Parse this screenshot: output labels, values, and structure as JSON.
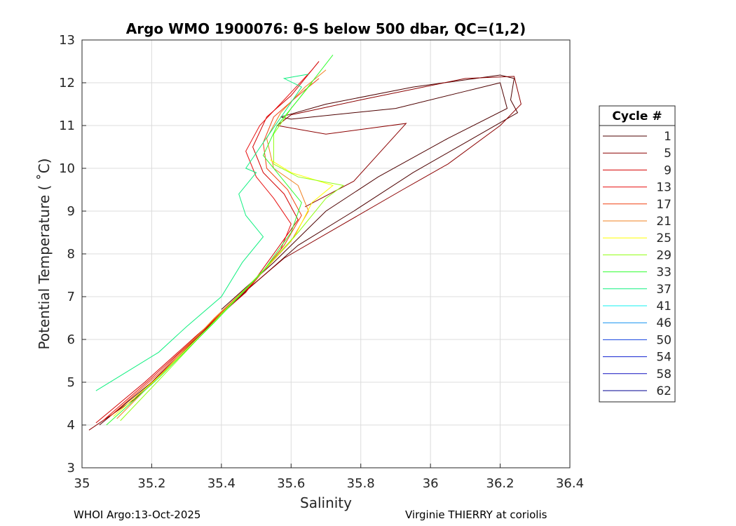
{
  "chart_data": {
    "type": "line",
    "title": "Argo WMO 1900076: θ-S below 500 dbar,  QC=(1,2)",
    "xlabel": "Salinity",
    "ylabel": "Potential Temperature ( ˚C)",
    "xlim": [
      35,
      36.4
    ],
    "ylim": [
      3,
      13
    ],
    "xticks": [
      "35",
      "35.2",
      "35.4",
      "35.6",
      "35.8",
      "36",
      "36.2",
      "36.4"
    ],
    "yticks": [
      "3",
      "4",
      "5",
      "6",
      "7",
      "8",
      "9",
      "10",
      "11",
      "12",
      "13"
    ],
    "grid": true,
    "legend_title": "Cycle #",
    "legend_position": "right",
    "series": [
      {
        "name": "1",
        "color": "#4d0000",
        "points": [
          [
            35.05,
            4.0
          ],
          [
            35.2,
            5.0
          ],
          [
            35.35,
            6.2
          ],
          [
            35.48,
            7.2
          ],
          [
            35.62,
            8.2
          ],
          [
            35.78,
            9.0
          ],
          [
            35.95,
            9.9
          ],
          [
            36.1,
            10.6
          ],
          [
            36.25,
            11.3
          ],
          [
            36.23,
            11.6
          ],
          [
            36.24,
            12.1
          ],
          [
            36.2,
            12.18
          ],
          [
            35.95,
            11.9
          ],
          [
            35.7,
            11.5
          ],
          [
            35.57,
            11.2
          ],
          [
            35.6,
            11.15
          ],
          [
            35.9,
            11.4
          ],
          [
            36.1,
            11.8
          ],
          [
            36.2,
            12.0
          ],
          [
            36.22,
            11.4
          ],
          [
            36.05,
            10.7
          ],
          [
            35.85,
            9.8
          ],
          [
            35.7,
            9.0
          ],
          [
            35.55,
            7.8
          ],
          [
            35.4,
            6.7
          ]
        ]
      },
      {
        "name": "5",
        "color": "#8b0000",
        "points": [
          [
            35.02,
            3.88
          ],
          [
            35.15,
            4.6
          ],
          [
            35.3,
            5.8
          ],
          [
            35.45,
            7.0
          ],
          [
            35.58,
            7.9
          ],
          [
            35.75,
            8.7
          ],
          [
            35.92,
            9.5
          ],
          [
            36.05,
            10.1
          ],
          [
            36.2,
            11.0
          ],
          [
            36.26,
            11.5
          ],
          [
            36.24,
            12.15
          ],
          [
            36.1,
            12.1
          ],
          [
            35.8,
            11.6
          ],
          [
            35.6,
            11.25
          ],
          [
            35.56,
            11.0
          ],
          [
            35.7,
            10.8
          ],
          [
            35.93,
            11.05
          ],
          [
            35.88,
            10.6
          ],
          [
            35.78,
            9.7
          ],
          [
            35.64,
            9.1
          ]
        ]
      },
      {
        "name": "9",
        "color": "#d40000",
        "points": [
          [
            35.04,
            4.05
          ],
          [
            35.18,
            5.0
          ],
          [
            35.33,
            6.1
          ],
          [
            35.47,
            7.1
          ],
          [
            35.55,
            8.0
          ],
          [
            35.62,
            8.8
          ],
          [
            35.58,
            9.4
          ],
          [
            35.52,
            9.9
          ],
          [
            35.49,
            10.5
          ],
          [
            35.53,
            11.2
          ],
          [
            35.6,
            11.7
          ],
          [
            35.68,
            12.5
          ]
        ]
      },
      {
        "name": "13",
        "color": "#e81010",
        "points": [
          [
            35.06,
            4.1
          ],
          [
            35.2,
            5.1
          ],
          [
            35.36,
            6.3
          ],
          [
            35.49,
            7.3
          ],
          [
            35.57,
            8.1
          ],
          [
            35.6,
            8.7
          ],
          [
            35.55,
            9.3
          ],
          [
            35.5,
            9.8
          ],
          [
            35.47,
            10.4
          ],
          [
            35.51,
            11.0
          ],
          [
            35.58,
            11.6
          ],
          [
            35.66,
            12.3
          ]
        ]
      },
      {
        "name": "17",
        "color": "#f04010",
        "points": [
          [
            35.08,
            4.2
          ],
          [
            35.22,
            5.2
          ],
          [
            35.37,
            6.4
          ],
          [
            35.5,
            7.4
          ],
          [
            35.58,
            8.2
          ],
          [
            35.63,
            8.9
          ],
          [
            35.59,
            9.5
          ],
          [
            35.53,
            10.0
          ],
          [
            35.52,
            10.6
          ],
          [
            35.55,
            11.2
          ],
          [
            35.62,
            11.7
          ],
          [
            35.68,
            12.1
          ]
        ]
      },
      {
        "name": "21",
        "color": "#f08020",
        "points": [
          [
            35.1,
            4.15
          ],
          [
            35.24,
            5.3
          ],
          [
            35.38,
            6.5
          ],
          [
            35.51,
            7.5
          ],
          [
            35.6,
            8.3
          ],
          [
            35.65,
            9.0
          ],
          [
            35.62,
            9.6
          ],
          [
            35.55,
            10.0
          ],
          [
            35.53,
            10.7
          ],
          [
            35.57,
            11.3
          ],
          [
            35.64,
            11.9
          ],
          [
            35.7,
            12.3
          ]
        ]
      },
      {
        "name": "25",
        "color": "#ffff00",
        "points": [
          [
            35.09,
            4.2
          ],
          [
            35.23,
            5.2
          ],
          [
            35.39,
            6.5
          ],
          [
            35.52,
            7.6
          ],
          [
            35.61,
            8.4
          ],
          [
            35.66,
            9.2
          ],
          [
            35.72,
            9.6
          ],
          [
            35.6,
            9.9
          ],
          [
            35.54,
            10.2
          ]
        ]
      },
      {
        "name": "29",
        "color": "#90ff10",
        "points": [
          [
            35.11,
            4.1
          ],
          [
            35.25,
            5.3
          ],
          [
            35.4,
            6.6
          ],
          [
            35.53,
            7.7
          ],
          [
            35.62,
            8.5
          ],
          [
            35.7,
            9.3
          ],
          [
            35.75,
            9.6
          ],
          [
            35.62,
            9.8
          ],
          [
            35.55,
            10.1
          ],
          [
            35.55,
            10.8
          ],
          [
            35.6,
            11.4
          ],
          [
            35.66,
            12.0
          ]
        ]
      },
      {
        "name": "33",
        "color": "#30ff30",
        "points": [
          [
            35.07,
            4.0
          ],
          [
            35.22,
            5.1
          ],
          [
            35.38,
            6.4
          ],
          [
            35.52,
            7.6
          ],
          [
            35.6,
            8.5
          ],
          [
            35.63,
            9.2
          ],
          [
            35.58,
            9.7
          ],
          [
            35.52,
            10.3
          ],
          [
            35.56,
            11.0
          ],
          [
            35.62,
            11.6
          ],
          [
            35.72,
            12.65
          ]
        ]
      },
      {
        "name": "37",
        "color": "#10f080",
        "points": [
          [
            35.04,
            4.8
          ],
          [
            35.12,
            5.2
          ],
          [
            35.22,
            5.7
          ],
          [
            35.3,
            6.3
          ],
          [
            35.4,
            7.0
          ],
          [
            35.46,
            7.8
          ],
          [
            35.52,
            8.4
          ],
          [
            35.47,
            8.9
          ],
          [
            35.45,
            9.4
          ],
          [
            35.5,
            9.9
          ],
          [
            35.47,
            10.0
          ],
          [
            35.52,
            10.6
          ],
          [
            35.58,
            11.3
          ],
          [
            35.63,
            11.9
          ],
          [
            35.58,
            12.1
          ],
          [
            35.65,
            12.2
          ]
        ]
      },
      {
        "name": "41",
        "color": "#10f0f0",
        "points": []
      },
      {
        "name": "46",
        "color": "#1090f0",
        "points": []
      },
      {
        "name": "50",
        "color": "#1040e0",
        "points": []
      },
      {
        "name": "54",
        "color": "#1020d0",
        "points": []
      },
      {
        "name": "58",
        "color": "#1010c0",
        "points": []
      },
      {
        "name": "62",
        "color": "#000090",
        "points": []
      }
    ]
  },
  "footer": {
    "left": "WHOI Argo:13-Oct-2025",
    "right": "Virginie THIERRY at coriolis"
  }
}
